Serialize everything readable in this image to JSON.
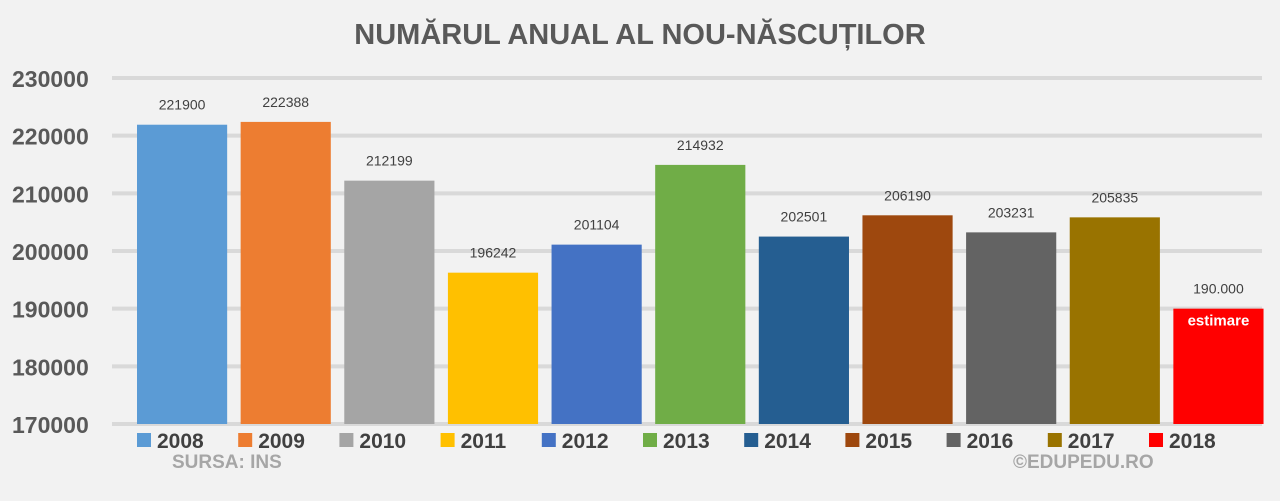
{
  "chart_data": {
    "type": "bar",
    "title": "NUMĂRUL ANUAL AL NOU-NĂSCUȚILOR",
    "xlabel": "",
    "ylabel": "",
    "ylim": [
      170000,
      230000
    ],
    "yticks": [
      "170000",
      "180000",
      "190000",
      "200000",
      "210000",
      "220000",
      "230000"
    ],
    "grid": true,
    "legend_position": "bottom",
    "categories": [
      "2008",
      "2009",
      "2010",
      "2011",
      "2012",
      "2013",
      "2014",
      "2015",
      "2016",
      "2017",
      "2018"
    ],
    "values": [
      221900,
      222388,
      212199,
      196242,
      201104,
      214932,
      202501,
      206190,
      203231,
      205835,
      190000
    ],
    "data_labels": [
      "221900",
      "222388",
      "212199",
      "196242",
      "201104",
      "214932",
      "202501",
      "206190",
      "203231",
      "205835",
      "190.000"
    ],
    "colors": [
      "#5b9bd5",
      "#ed7d31",
      "#a5a5a5",
      "#ffc000",
      "#4472c4",
      "#70ad47",
      "#255e91",
      "#9e480e",
      "#636363",
      "#997300",
      "#ff0000"
    ],
    "annotations": [
      {
        "category": "2018",
        "text": "estimare"
      }
    ],
    "source_note": "SURSA: INS",
    "credit": "©EDUPEDU.RO"
  }
}
